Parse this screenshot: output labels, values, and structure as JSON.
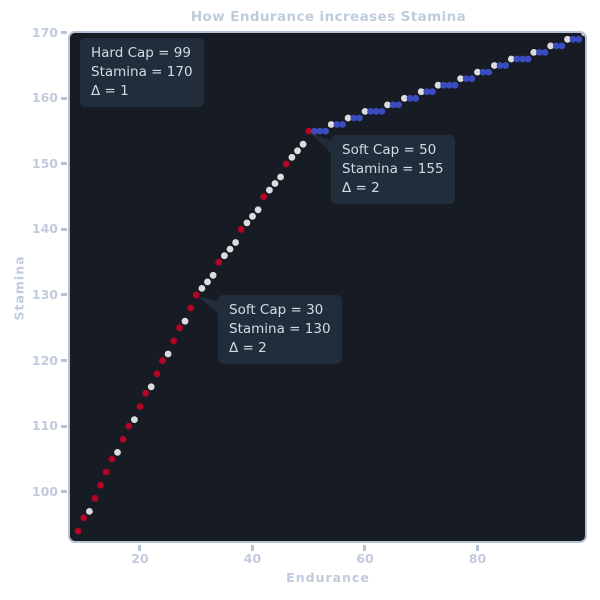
{
  "title": "How Endurance increases Stamina",
  "axes": {
    "xlabel": "Endurance",
    "ylabel": "Stamina",
    "x_tick_labels": [
      "20",
      "40",
      "60",
      "80"
    ],
    "y_tick_labels": [
      "100",
      "110",
      "120",
      "130",
      "140",
      "150",
      "160",
      "170"
    ]
  },
  "annotations": [
    {
      "id": "hard-cap",
      "lines": [
        "Hard Cap = 99",
        "Stamina = 170",
        "Δ = 1"
      ],
      "target": {
        "endurance": 99,
        "stamina": 170
      },
      "has_tail": false
    },
    {
      "id": "soft-cap-50",
      "lines": [
        "Soft Cap = 50",
        "Stamina = 155",
        "Δ = 2"
      ],
      "target": {
        "endurance": 50,
        "stamina": 155
      },
      "has_tail": true
    },
    {
      "id": "soft-cap-30",
      "lines": [
        "Soft Cap = 30",
        "Stamina = 130",
        "Δ = 2"
      ],
      "target": {
        "endurance": 30,
        "stamina": 130
      },
      "has_tail": true
    }
  ],
  "colors": {
    "figure_bg": "#ffffff",
    "panel_bg": "#161b24",
    "spine": "#b6c3d4",
    "label": "#c0ccdc",
    "annotation_bg": "#212d3b",
    "annotation_text": "#d2dbe6"
  },
  "chart_data": {
    "type": "scatter",
    "title": "How Endurance increases Stamina",
    "xlabel": "Endurance",
    "ylabel": "Stamina",
    "x_ticks": [
      20,
      40,
      60,
      80
    ],
    "y_ticks": [
      100,
      110,
      120,
      130,
      140,
      150,
      160,
      170
    ],
    "xlim": [
      7.56,
      99.11
    ],
    "ylim": [
      92.48,
      169.96
    ],
    "grid": false,
    "legend": "none",
    "point_color_by_delta": {
      "0": "#3b4cc0",
      "1": "#dcdcdc",
      "2": "#b40426"
    },
    "points_format": "[endurance, stamina, delta_vs_previous_level]",
    "points": [
      [
        9,
        94,
        2
      ],
      [
        10,
        96,
        2
      ],
      [
        11,
        97,
        1
      ],
      [
        12,
        99,
        2
      ],
      [
        13,
        101,
        2
      ],
      [
        14,
        103,
        2
      ],
      [
        15,
        105,
        2
      ],
      [
        16,
        106,
        1
      ],
      [
        17,
        108,
        2
      ],
      [
        18,
        110,
        2
      ],
      [
        19,
        111,
        1
      ],
      [
        20,
        113,
        2
      ],
      [
        21,
        115,
        2
      ],
      [
        22,
        116,
        1
      ],
      [
        23,
        118,
        2
      ],
      [
        24,
        120,
        2
      ],
      [
        25,
        121,
        1
      ],
      [
        26,
        123,
        2
      ],
      [
        27,
        125,
        2
      ],
      [
        28,
        126,
        1
      ],
      [
        29,
        128,
        2
      ],
      [
        30,
        130,
        2
      ],
      [
        31,
        131,
        1
      ],
      [
        32,
        132,
        1
      ],
      [
        33,
        133,
        1
      ],
      [
        34,
        135,
        2
      ],
      [
        35,
        136,
        1
      ],
      [
        36,
        137,
        1
      ],
      [
        37,
        138,
        1
      ],
      [
        38,
        140,
        2
      ],
      [
        39,
        141,
        1
      ],
      [
        40,
        142,
        1
      ],
      [
        41,
        143,
        1
      ],
      [
        42,
        145,
        2
      ],
      [
        43,
        146,
        1
      ],
      [
        44,
        147,
        1
      ],
      [
        45,
        148,
        1
      ],
      [
        46,
        150,
        2
      ],
      [
        47,
        151,
        1
      ],
      [
        48,
        152,
        1
      ],
      [
        49,
        153,
        1
      ],
      [
        50,
        155,
        2
      ],
      [
        51,
        155,
        0
      ],
      [
        52,
        155,
        0
      ],
      [
        53,
        155,
        0
      ],
      [
        54,
        156,
        1
      ],
      [
        55,
        156,
        0
      ],
      [
        56,
        156,
        0
      ],
      [
        57,
        157,
        1
      ],
      [
        58,
        157,
        0
      ],
      [
        59,
        157,
        0
      ],
      [
        60,
        158,
        1
      ],
      [
        61,
        158,
        0
      ],
      [
        62,
        158,
        0
      ],
      [
        63,
        158,
        0
      ],
      [
        64,
        159,
        1
      ],
      [
        65,
        159,
        0
      ],
      [
        66,
        159,
        0
      ],
      [
        67,
        160,
        1
      ],
      [
        68,
        160,
        0
      ],
      [
        69,
        160,
        0
      ],
      [
        70,
        161,
        1
      ],
      [
        71,
        161,
        0
      ],
      [
        72,
        161,
        0
      ],
      [
        73,
        162,
        1
      ],
      [
        74,
        162,
        0
      ],
      [
        75,
        162,
        0
      ],
      [
        76,
        162,
        0
      ],
      [
        77,
        163,
        1
      ],
      [
        78,
        163,
        0
      ],
      [
        79,
        163,
        0
      ],
      [
        80,
        164,
        1
      ],
      [
        81,
        164,
        0
      ],
      [
        82,
        164,
        0
      ],
      [
        83,
        165,
        1
      ],
      [
        84,
        165,
        0
      ],
      [
        85,
        165,
        0
      ],
      [
        86,
        166,
        1
      ],
      [
        87,
        166,
        0
      ],
      [
        88,
        166,
        0
      ],
      [
        89,
        166,
        0
      ],
      [
        90,
        167,
        1
      ],
      [
        91,
        167,
        0
      ],
      [
        92,
        167,
        0
      ],
      [
        93,
        168,
        1
      ],
      [
        94,
        168,
        0
      ],
      [
        95,
        168,
        0
      ],
      [
        96,
        169,
        1
      ],
      [
        97,
        169,
        0
      ],
      [
        98,
        169,
        0
      ],
      [
        99,
        170,
        1
      ]
    ]
  }
}
